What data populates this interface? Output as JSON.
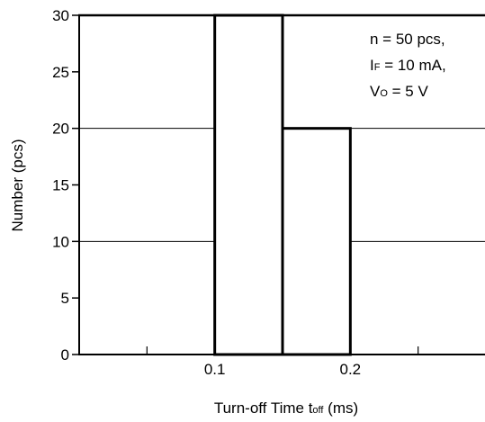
{
  "chart_data": {
    "type": "bar",
    "bins": [
      {
        "x0": 0.1,
        "x1": 0.15,
        "count": 30
      },
      {
        "x0": 0.15,
        "x1": 0.2,
        "count": 20
      }
    ],
    "xlim": [
      0,
      0.3
    ],
    "ylim": [
      0,
      30
    ],
    "x_ticks": [
      0.1,
      0.2
    ],
    "x_tick_labels": [
      "0.1",
      "0.2"
    ],
    "x_minor_ticks": [
      0.05,
      0.15,
      0.25
    ],
    "y_ticks": [
      0,
      5,
      10,
      15,
      20,
      25,
      30
    ],
    "y_tick_labels": [
      "0",
      "5",
      "10",
      "15",
      "20",
      "25",
      "30"
    ],
    "gridlines_y": [
      10,
      20
    ],
    "xlabel": {
      "main": "Turn-off Time  t",
      "sub": "off",
      "unit": " (ms)"
    },
    "ylabel": "Number  (pcs)",
    "annotations": [
      {
        "main": "n = 50 pcs,",
        "sub": "",
        "rest": ""
      },
      {
        "main": "I",
        "sub": "F",
        "rest": " = 10 mA,"
      },
      {
        "main": "V",
        "sub": "O",
        "rest": " = 5 V"
      }
    ],
    "grid": "horizontal at 10 and 20",
    "legend": "none"
  }
}
